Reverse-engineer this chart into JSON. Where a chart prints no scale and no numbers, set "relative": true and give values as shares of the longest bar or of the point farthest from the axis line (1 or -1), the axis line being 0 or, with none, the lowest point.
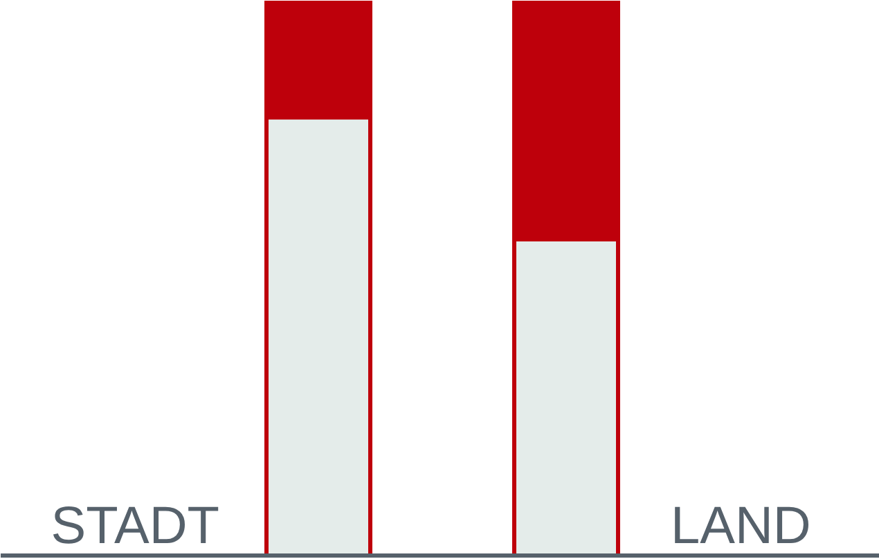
{
  "chart_data": {
    "type": "bar",
    "categories": [
      "STADT",
      "LAND"
    ],
    "stacked": true,
    "relative": true,
    "series": [
      {
        "color": "#e4ecea",
        "values": [
          0.79,
          0.57
        ]
      },
      {
        "color": "#be000b",
        "values": [
          0.21,
          0.43
        ]
      }
    ]
  }
}
